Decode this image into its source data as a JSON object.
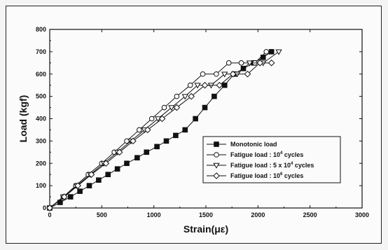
{
  "chart_data": {
    "type": "line",
    "xlabel": "Strain(με)",
    "ylabel": "Load (kgf)",
    "xlim": [
      0,
      3000
    ],
    "ylim": [
      0,
      800
    ],
    "xticks": [
      0,
      500,
      1000,
      1500,
      2000,
      2500,
      3000
    ],
    "yticks": [
      0,
      100,
      200,
      300,
      400,
      500,
      600,
      700,
      800
    ],
    "grid": false,
    "legend_position": "lower-right",
    "series": [
      {
        "name": "Monotonic load",
        "marker": "square-filled",
        "x": [
          0,
          100,
          200,
          290,
          380,
          470,
          560,
          650,
          740,
          840,
          930,
          1030,
          1120,
          1210,
          1300,
          1400,
          1490,
          1580,
          1680,
          1770,
          1860,
          1960,
          2050,
          2130
        ],
        "y": [
          0,
          25,
          50,
          75,
          100,
          125,
          150,
          175,
          200,
          225,
          250,
          275,
          300,
          325,
          350,
          400,
          450,
          500,
          550,
          600,
          625,
          650,
          675,
          700
        ]
      },
      {
        "name": "Fatigue load : 10^4 cycles",
        "marker": "circle-open",
        "x": [
          0,
          130,
          250,
          370,
          500,
          620,
          740,
          860,
          980,
          1100,
          1220,
          1350,
          1470,
          1600,
          1720,
          1840,
          1970,
          2080
        ],
        "y": [
          0,
          50,
          100,
          150,
          200,
          250,
          300,
          350,
          400,
          450,
          500,
          550,
          600,
          600,
          650,
          650,
          650,
          700
        ]
      },
      {
        "name": "Fatigue load : 5 x 10^4 cycles",
        "marker": "triangle-down-open",
        "x": [
          0,
          130,
          260,
          390,
          520,
          650,
          780,
          910,
          1040,
          1170,
          1300,
          1420,
          1550,
          1680,
          1800,
          1920,
          2050,
          2200
        ],
        "y": [
          0,
          50,
          100,
          150,
          200,
          250,
          300,
          350,
          400,
          450,
          500,
          550,
          550,
          600,
          600,
          650,
          650,
          700
        ]
      },
      {
        "name": "Fatigue load : 10^6 cycles",
        "marker": "diamond-open",
        "x": [
          0,
          140,
          270,
          400,
          540,
          670,
          800,
          940,
          1080,
          1220,
          1360,
          1490,
          1630,
          1760,
          1900,
          2020,
          2130
        ],
        "y": [
          0,
          50,
          100,
          150,
          200,
          250,
          300,
          350,
          400,
          450,
          500,
          550,
          550,
          600,
          600,
          650,
          650
        ]
      }
    ],
    "legend": [
      {
        "text": "Monotonic load",
        "sup": ""
      },
      {
        "text": "Fatigue load : 10",
        "sup": "4",
        "after": " cycles"
      },
      {
        "text": "Fatigue load : 5 x 10",
        "sup": "4",
        "after": " cycles"
      },
      {
        "text": "Fatigue load : 10",
        "sup": "6",
        "after": " cycles"
      }
    ]
  }
}
